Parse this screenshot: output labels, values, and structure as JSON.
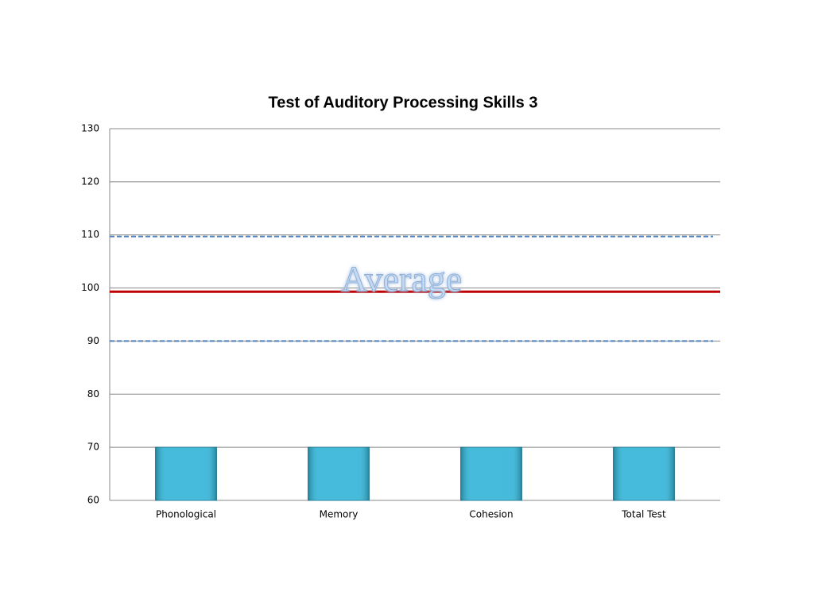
{
  "chart_data": {
    "type": "bar",
    "title": "Test of Auditory Processing Skills 3",
    "categories": [
      "Phonological",
      "Memory",
      "Cohesion",
      "Total Test"
    ],
    "values": [
      70,
      70,
      70,
      70
    ],
    "color": "#31b3d6",
    "ylim": [
      60,
      130
    ],
    "yticks": [
      60,
      70,
      80,
      90,
      100,
      110,
      120,
      130
    ],
    "grid": true,
    "annotation": "Average",
    "reference_lines": [
      {
        "value": 109.7,
        "color": "#4f81bd",
        "style": "dashed"
      },
      {
        "value": 99.3,
        "color": "#c00000",
        "style": "solid"
      },
      {
        "value": 90,
        "color": "#4f81bd",
        "style": "dashed"
      }
    ]
  }
}
